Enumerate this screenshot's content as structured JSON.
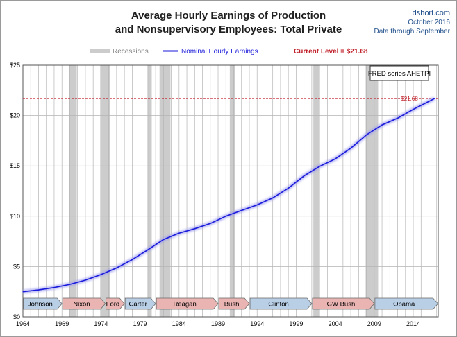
{
  "header": {
    "title_line1": "Average Hourly Earnings of Production",
    "title_line2": "and Nonsupervisory Employees: Total Private",
    "source": "dshort.com",
    "date": "October 2016",
    "data_through": "Data through September"
  },
  "colors": {
    "series": "#1a1adb",
    "current_level": "#c0202a",
    "recession": "#cccccc",
    "dem": "#b9cfe6",
    "rep": "#eab4b2",
    "grid": "#b4b4b4"
  },
  "chart_data": {
    "type": "line",
    "title": "Average Hourly Earnings of Production and Nonsupervisory Employees: Total Private",
    "series_note": "FRED series AHETPI",
    "legend": {
      "recessions": "Recessions",
      "series": "Nominal Hourly Earnings",
      "current_level": "Current Level = $21.68",
      "placement": "top-center"
    },
    "current_value_label": "$21.68",
    "current_value": 21.68,
    "xlim": [
      1964,
      2017.2
    ],
    "ylim": [
      0,
      25
    ],
    "x_ticks": [
      1964,
      1969,
      1974,
      1979,
      1984,
      1989,
      1994,
      1999,
      2004,
      2009,
      2014
    ],
    "y_ticks": [
      {
        "v": 0,
        "label": "$0"
      },
      {
        "v": 5,
        "label": "$5"
      },
      {
        "v": 10,
        "label": "$10"
      },
      {
        "v": 15,
        "label": "$15"
      },
      {
        "v": 20,
        "label": "$20"
      },
      {
        "v": 25,
        "label": "$25"
      }
    ],
    "grid": true,
    "series": [
      {
        "name": "Nominal Hourly Earnings",
        "x": [
          1964,
          1966,
          1968,
          1970,
          1972,
          1974,
          1976,
          1978,
          1980,
          1982,
          1984,
          1986,
          1988,
          1990,
          1992,
          1994,
          1996,
          1998,
          2000,
          2002,
          2004,
          2006,
          2008,
          2010,
          2012,
          2014,
          2016.7
        ],
        "y": [
          2.5,
          2.68,
          2.91,
          3.23,
          3.65,
          4.2,
          4.86,
          5.69,
          6.66,
          7.68,
          8.32,
          8.76,
          9.28,
          10.01,
          10.57,
          11.12,
          11.82,
          12.78,
          14.0,
          14.95,
          15.69,
          16.76,
          18.08,
          19.07,
          19.74,
          20.61,
          21.68
        ]
      }
    ],
    "recessions": [
      [
        1969.9,
        1970.9
      ],
      [
        1973.9,
        1975.2
      ],
      [
        1980.0,
        1980.5
      ],
      [
        1981.5,
        1982.9
      ],
      [
        1990.5,
        1991.2
      ],
      [
        2001.2,
        2001.9
      ],
      [
        2007.9,
        2009.5
      ]
    ],
    "presidents": [
      {
        "name": "Johnson",
        "start": 1964,
        "end": 1969.05,
        "party": "dem"
      },
      {
        "name": "Nixon",
        "start": 1969.05,
        "end": 1974.6,
        "party": "rep"
      },
      {
        "name": "Ford",
        "start": 1974.6,
        "end": 1977.05,
        "party": "rep"
      },
      {
        "name": "Carter",
        "start": 1977.05,
        "end": 1981.05,
        "party": "dem"
      },
      {
        "name": "Reagan",
        "start": 1981.05,
        "end": 1989.05,
        "party": "rep"
      },
      {
        "name": "Bush",
        "start": 1989.05,
        "end": 1993.05,
        "party": "rep"
      },
      {
        "name": "Clinton",
        "start": 1993.05,
        "end": 2001.05,
        "party": "dem"
      },
      {
        "name": "GW Bush",
        "start": 2001.05,
        "end": 2009.05,
        "party": "rep"
      },
      {
        "name": "Obama",
        "start": 2009.05,
        "end": 2017.2,
        "party": "dem"
      }
    ]
  }
}
